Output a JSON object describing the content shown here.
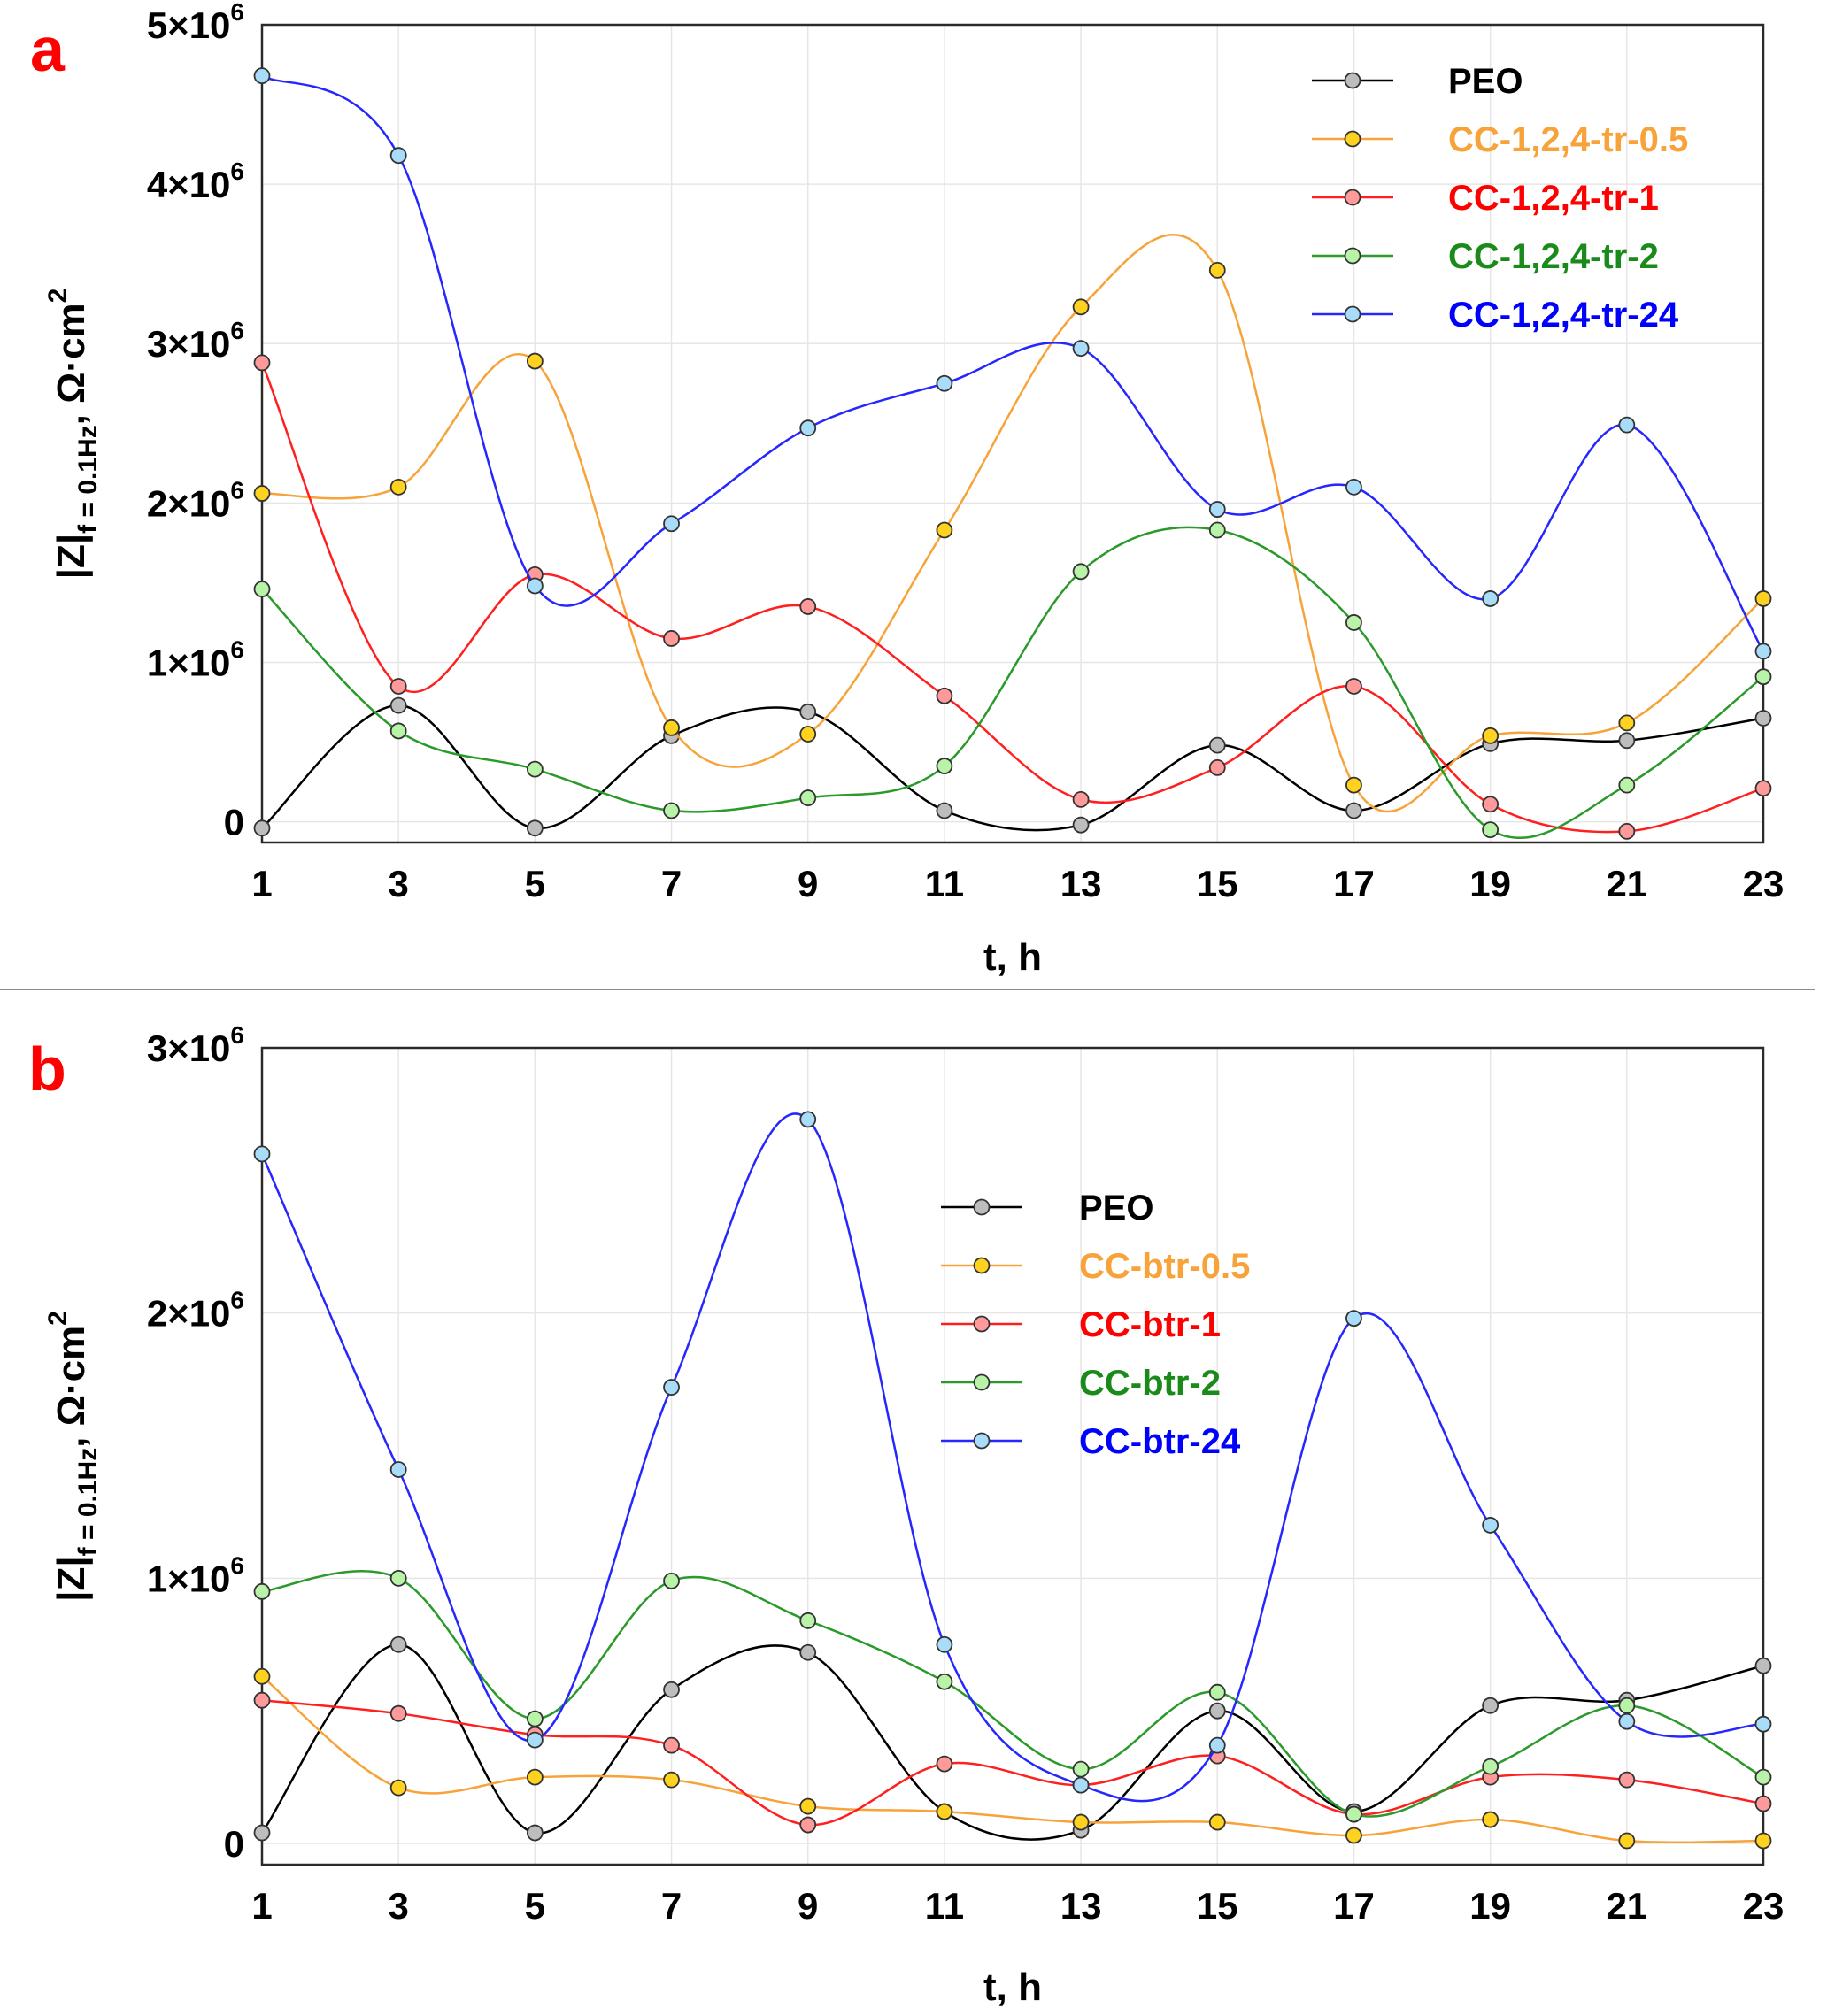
{
  "chart_data": [
    {
      "panel_label": "a",
      "type": "line",
      "smooth": true,
      "title": "",
      "xlabel": "t, h",
      "ylabel": "|Z|f = 0.1Hz, Ω·cm2",
      "ylabel_parts": {
        "main": "|Z|",
        "sub": "f = 0.1Hz",
        "unit": ", Ω·cm",
        "sup": "2"
      },
      "x": [
        1,
        3,
        5,
        7,
        9,
        11,
        13,
        15,
        17,
        19,
        21,
        23
      ],
      "xlim": [
        1,
        23
      ],
      "ylim": [
        -130000,
        5000000
      ],
      "yticks": [
        0,
        1000000,
        2000000,
        3000000,
        4000000,
        5000000
      ],
      "ytick_labels": [
        {
          "base": "0",
          "exp": ""
        },
        {
          "base": "1×10",
          "exp": "6"
        },
        {
          "base": "2×10",
          "exp": "6"
        },
        {
          "base": "3×10",
          "exp": "6"
        },
        {
          "base": "4×10",
          "exp": "6"
        },
        {
          "base": "5×10",
          "exp": "6"
        }
      ],
      "grid": true,
      "legend_position": "top-right",
      "series": [
        {
          "name": "PEO",
          "line_color": "#000000",
          "marker_color": "#bdbdbd",
          "text_color": "#000000",
          "values": [
            -40000,
            730000,
            -40000,
            540000,
            690000,
            70000,
            -20000,
            480000,
            70000,
            490000,
            510000,
            650000
          ]
        },
        {
          "name": "CC-1,2,4-tr-0.5",
          "line_color": "#f7a33a",
          "marker_color": "#ffd21f",
          "text_color": "#f7a33a",
          "values": [
            2060000,
            2100000,
            2890000,
            590000,
            550000,
            1830000,
            3230000,
            3460000,
            230000,
            540000,
            620000,
            1400000
          ]
        },
        {
          "name": "CC-1,2,4-tr-1",
          "line_color": "#ff1f1f",
          "marker_color": "#ff9a9a",
          "text_color": "#ff0000",
          "values": [
            2880000,
            850000,
            1550000,
            1150000,
            1350000,
            790000,
            140000,
            340000,
            850000,
            110000,
            -60000,
            210000
          ]
        },
        {
          "name": "CC-1,2,4-tr-2",
          "line_color": "#2a9a2a",
          "marker_color": "#b8f3a8",
          "text_color": "#1a8a1a",
          "values": [
            1460000,
            570000,
            330000,
            70000,
            150000,
            350000,
            1570000,
            1830000,
            1250000,
            -50000,
            230000,
            910000
          ]
        },
        {
          "name": "CC-1,2,4-tr-24",
          "line_color": "#2626ff",
          "marker_color": "#a8dcf8",
          "text_color": "#0000ff",
          "values": [
            4680000,
            4180000,
            1480000,
            1870000,
            2470000,
            2750000,
            2970000,
            1960000,
            2100000,
            1400000,
            2490000,
            1070000
          ]
        }
      ]
    },
    {
      "panel_label": "b",
      "type": "line",
      "smooth": true,
      "title": "",
      "xlabel": "t, h",
      "ylabel": "|Z|f = 0.1Hz, Ω·cm2",
      "ylabel_parts": {
        "main": "|Z|",
        "sub": "f = 0.1Hz",
        "unit": ", Ω·cm",
        "sup": "2"
      },
      "x": [
        1,
        3,
        5,
        7,
        9,
        11,
        13,
        15,
        17,
        19,
        21,
        23
      ],
      "xlim": [
        1,
        23
      ],
      "ylim": [
        -80000,
        3000000
      ],
      "yticks": [
        0,
        1000000,
        2000000,
        3000000
      ],
      "ytick_labels": [
        {
          "base": "0",
          "exp": ""
        },
        {
          "base": "1×10",
          "exp": "6"
        },
        {
          "base": "2×10",
          "exp": "6"
        },
        {
          "base": "3×10",
          "exp": "6"
        }
      ],
      "grid": true,
      "legend_position": "top-center",
      "series": [
        {
          "name": "PEO",
          "line_color": "#000000",
          "marker_color": "#bdbdbd",
          "text_color": "#000000",
          "values": [
            40000,
            750000,
            40000,
            580000,
            720000,
            120000,
            50000,
            500000,
            120000,
            520000,
            540000,
            670000
          ]
        },
        {
          "name": "CC-btr-0.5",
          "line_color": "#f7a33a",
          "marker_color": "#ffd21f",
          "text_color": "#f7a33a",
          "values": [
            630000,
            210000,
            250000,
            240000,
            140000,
            120000,
            80000,
            80000,
            30000,
            90000,
            10000,
            10000
          ]
        },
        {
          "name": "CC-btr-1",
          "line_color": "#ff1f1f",
          "marker_color": "#ff9a9a",
          "text_color": "#ff0000",
          "values": [
            540000,
            490000,
            410000,
            370000,
            70000,
            300000,
            220000,
            330000,
            110000,
            250000,
            240000,
            150000
          ]
        },
        {
          "name": "CC-btr-2",
          "line_color": "#2a9a2a",
          "marker_color": "#b8f3a8",
          "text_color": "#1a8a1a",
          "values": [
            950000,
            1000000,
            470000,
            990000,
            840000,
            610000,
            280000,
            570000,
            110000,
            290000,
            520000,
            250000
          ]
        },
        {
          "name": "CC-btr-24",
          "line_color": "#2626ff",
          "marker_color": "#a8dcf8",
          "text_color": "#0000ff",
          "values": [
            2600000,
            1410000,
            390000,
            1720000,
            2730000,
            750000,
            220000,
            370000,
            1980000,
            1200000,
            460000,
            450000
          ]
        }
      ]
    }
  ]
}
